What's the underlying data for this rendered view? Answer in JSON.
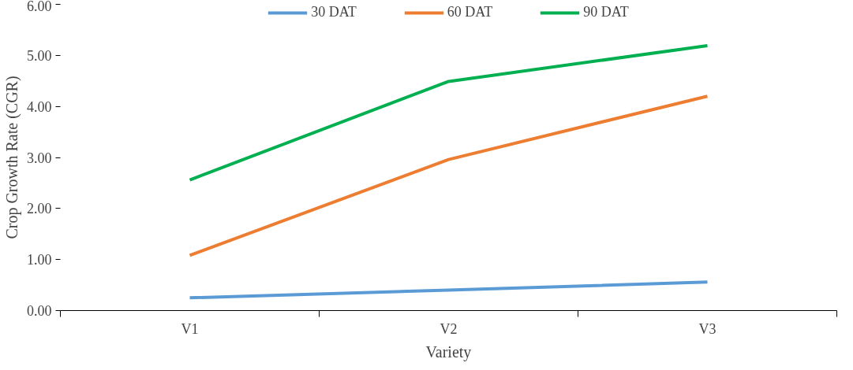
{
  "chart_data": {
    "type": "line",
    "xlabel": "Variety",
    "ylabel": "Crop Growth Rate (CGR)",
    "categories": [
      "V1",
      "V2",
      "V3"
    ],
    "series": [
      {
        "name": "30 DAT",
        "color": "#5b9bd5",
        "values": [
          0.25,
          0.4,
          0.56
        ]
      },
      {
        "name": "60 DAT",
        "color": "#ed7d31",
        "values": [
          1.08,
          2.96,
          4.2
        ]
      },
      {
        "name": "90 DAT",
        "color": "#00b050",
        "values": [
          2.56,
          4.49,
          5.19
        ]
      }
    ],
    "ylim": [
      0,
      6
    ],
    "yticks": [
      {
        "value": 0,
        "label": "0.00"
      },
      {
        "value": 1,
        "label": "1.00"
      },
      {
        "value": 2,
        "label": "2.00"
      },
      {
        "value": 3,
        "label": "3.00"
      },
      {
        "value": 4,
        "label": "4.00"
      },
      {
        "value": 5,
        "label": "5.00"
      },
      {
        "value": 6,
        "label": "6.00"
      }
    ],
    "grid": false,
    "legend": "top",
    "marker": "none",
    "line_style": "solid"
  }
}
